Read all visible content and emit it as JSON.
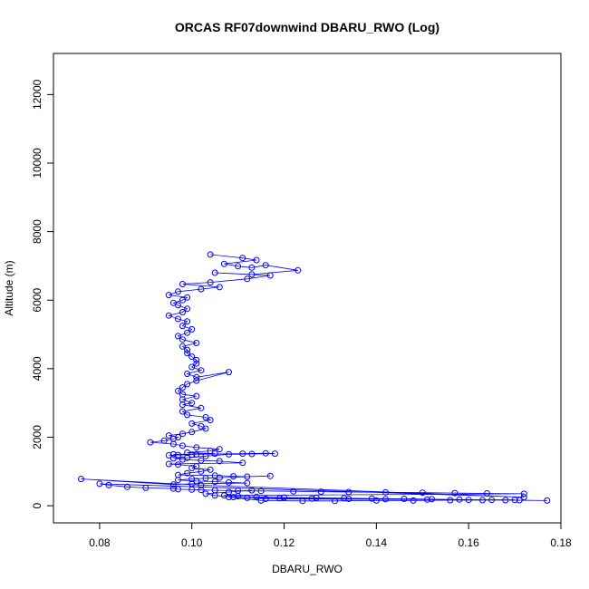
{
  "chart_data": {
    "type": "scatter",
    "title": "ORCAS RF07downwind DBARU_RWO (Log)",
    "xlabel": "DBARU_RWO",
    "ylabel": "Altitude (m)",
    "xlim": [
      0.07,
      0.18
    ],
    "ylim": [
      -500,
      13200
    ],
    "x_ticks": [
      0.08,
      0.1,
      0.12,
      0.14,
      0.16,
      0.18
    ],
    "x_tick_labels": [
      "0.08",
      "0.10",
      "0.12",
      "0.14",
      "0.16",
      "0.18"
    ],
    "y_ticks": [
      0,
      2000,
      4000,
      6000,
      8000,
      10000,
      12000
    ],
    "y_tick_labels": [
      "0",
      "2000",
      "4000",
      "6000",
      "8000",
      "10000",
      "12000"
    ],
    "grid": false,
    "legend": "none",
    "series_color": "#0000ff",
    "series": [
      {
        "x": [
          0.104,
          0.111,
          0.114,
          0.107,
          0.11,
          0.113,
          0.116,
          0.123,
          0.113,
          0.105,
          0.117,
          0.112,
          0.104,
          0.098,
          0.106,
          0.102,
          0.097,
          0.095,
          0.099,
          0.098,
          0.096,
          0.097,
          0.099,
          0.098,
          0.095,
          0.097,
          0.099,
          0.098,
          0.1,
          0.099,
          0.097,
          0.098,
          0.101,
          0.098,
          0.099,
          0.099,
          0.1,
          0.101,
          0.101,
          0.1,
          0.102,
          0.099,
          0.101,
          0.108,
          0.101,
          0.099,
          0.098,
          0.097,
          0.098,
          0.101,
          0.098,
          0.1,
          0.098,
          0.102,
          0.098,
          0.099,
          0.103,
          0.104,
          0.1,
          0.102,
          0.103,
          0.1,
          0.098,
          0.095,
          0.097,
          0.096,
          0.094,
          0.091,
          0.096,
          0.098,
          0.101,
          0.106,
          0.104,
          0.099,
          0.105,
          0.096,
          0.1,
          0.097,
          0.095,
          0.101,
          0.111,
          0.116,
          0.118,
          0.113,
          0.108,
          0.103,
          0.099,
          0.096,
          0.098,
          0.102,
          0.106,
          0.111,
          0.095,
          0.097,
          0.101,
          0.1,
          0.104,
          0.102,
          0.099,
          0.097,
          0.105,
          0.109,
          0.112,
          0.117,
          0.106,
          0.103,
          0.1,
          0.097,
          0.101,
          0.105,
          0.108,
          0.112,
          0.1,
          0.096,
          0.076,
          0.102,
          0.172,
          0.08,
          0.082,
          0.086,
          0.09,
          0.096,
          0.097,
          0.1,
          0.102,
          0.105,
          0.11,
          0.115,
          0.122,
          0.128,
          0.134,
          0.142,
          0.15,
          0.157,
          0.164,
          0.172,
          0.107,
          0.11,
          0.114,
          0.12,
          0.127,
          0.133,
          0.139,
          0.146,
          0.152,
          0.158,
          0.165,
          0.171,
          0.177,
          0.168,
          0.16,
          0.151,
          0.142,
          0.134,
          0.126,
          0.119,
          0.112,
          0.108,
          0.115,
          0.124,
          0.131,
          0.14,
          0.148,
          0.156,
          0.163,
          0.17,
          0.116,
          0.109,
          0.105,
          0.103,
          0.108,
          0.113
        ],
        "y": [
          7330,
          7230,
          7170,
          7060,
          6990,
          6950,
          7020,
          6870,
          6750,
          6800,
          6720,
          6620,
          6520,
          6470,
          6380,
          6320,
          6250,
          6150,
          6080,
          6000,
          5920,
          5850,
          5750,
          5650,
          5550,
          5450,
          5380,
          5250,
          5150,
          5050,
          4950,
          4850,
          4750,
          4650,
          4550,
          4450,
          4350,
          4250,
          4150,
          4050,
          3950,
          3850,
          3750,
          3900,
          3650,
          3550,
          3450,
          3350,
          3250,
          3200,
          3100,
          3000,
          2950,
          2850,
          2750,
          2650,
          2580,
          2500,
          2400,
          2320,
          2250,
          2150,
          2100,
          2050,
          2000,
          1950,
          1900,
          1850,
          1800,
          1750,
          1700,
          1650,
          1600,
          1550,
          1520,
          1500,
          1490,
          1480,
          1470,
          1500,
          1520,
          1530,
          1520,
          1510,
          1500,
          1450,
          1400,
          1380,
          1350,
          1320,
          1300,
          1250,
          1220,
          1200,
          1150,
          1100,
          1050,
          1000,
          950,
          900,
          880,
          860,
          850,
          870,
          820,
          800,
          780,
          750,
          720,
          700,
          680,
          660,
          640,
          620,
          780,
          600,
          250,
          640,
          600,
          550,
          520,
          500,
          480,
          470,
          460,
          450,
          440,
          430,
          420,
          410,
          400,
          390,
          380,
          370,
          360,
          350,
          300,
          280,
          260,
          240,
          230,
          220,
          210,
          200,
          190,
          180,
          170,
          160,
          150,
          160,
          170,
          180,
          190,
          200,
          210,
          220,
          230,
          250,
          150,
          140,
          140,
          150,
          150,
          160,
          160,
          170,
          200,
          250,
          300,
          350,
          400,
          450
        ]
      }
    ]
  }
}
